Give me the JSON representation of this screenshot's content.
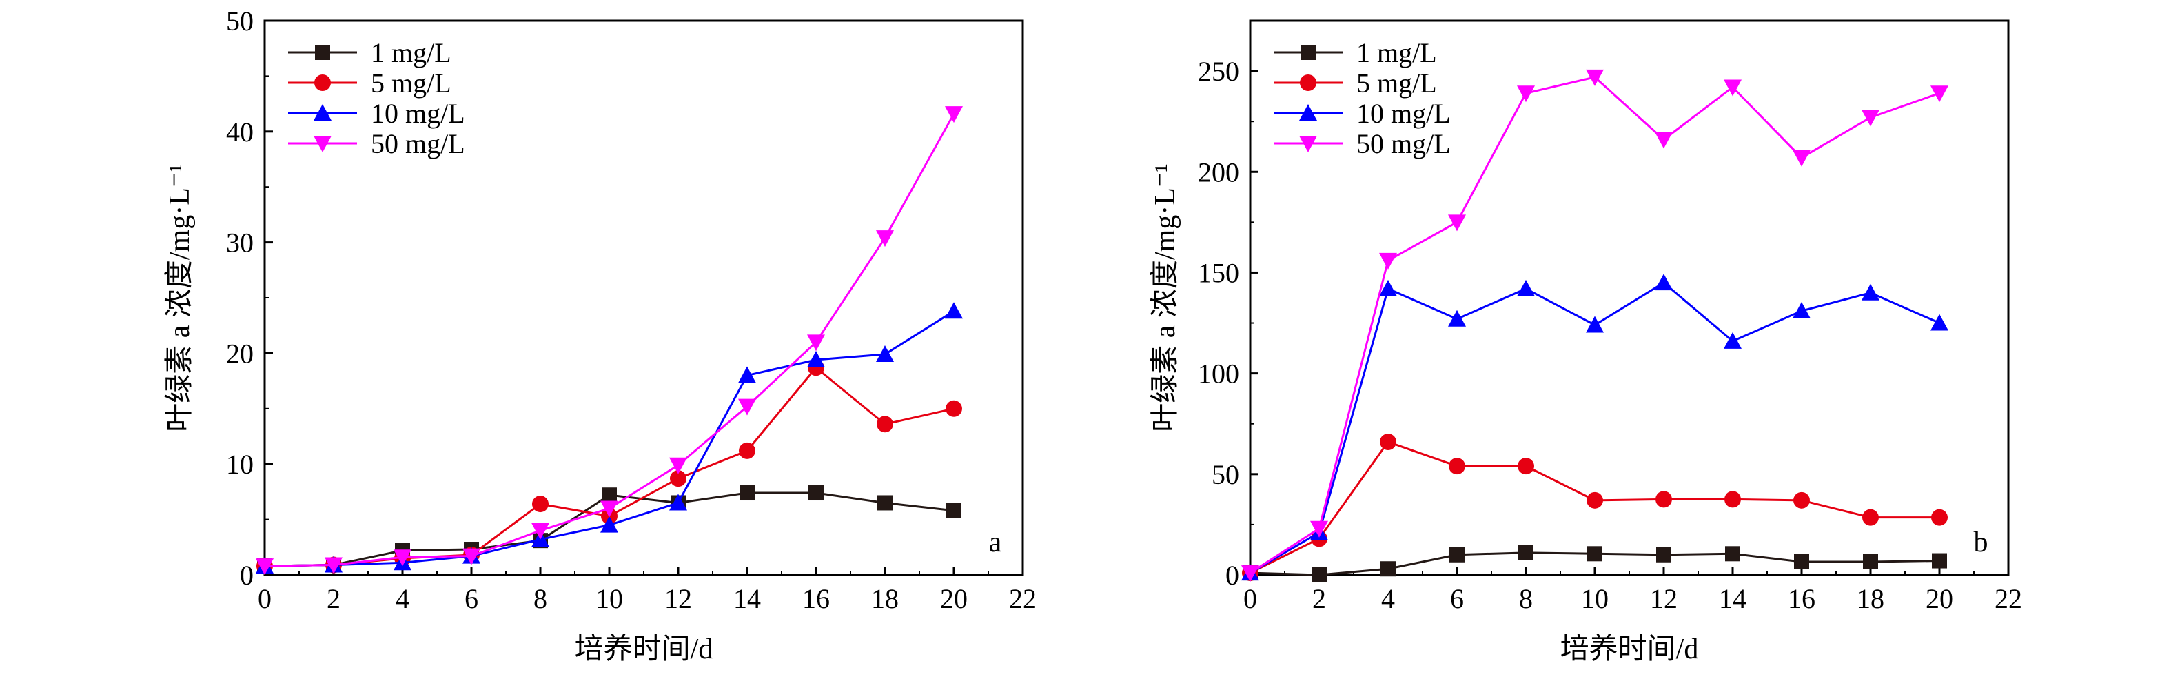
{
  "chart_data": [
    {
      "type": "line",
      "panel_label": "a",
      "xlabel": "培养时间/d",
      "ylabel": "叶绿素 a 浓度/mg·L⁻¹",
      "xlim": [
        0,
        22
      ],
      "ylim": [
        0,
        50
      ],
      "x_ticks": [
        "0",
        "2",
        "4",
        "6",
        "8",
        "10",
        "12",
        "14",
        "16",
        "18",
        "20",
        "22"
      ],
      "y_ticks": [
        "0",
        "10",
        "20",
        "30",
        "40",
        "50"
      ],
      "x": [
        0,
        2,
        4,
        6,
        8,
        10,
        12,
        14,
        16,
        18,
        20
      ],
      "grid": false,
      "legend_position": "top-left",
      "series": [
        {
          "name": "1 mg/L",
          "color": "#231815",
          "marker": "square",
          "values": [
            0.8,
            0.9,
            2.2,
            2.3,
            3.1,
            7.2,
            6.5,
            7.4,
            7.4,
            6.5,
            5.8
          ]
        },
        {
          "name": "5 mg/L",
          "color": "#e60012",
          "marker": "circle",
          "values": [
            0.8,
            0.9,
            1.5,
            1.8,
            6.4,
            5.3,
            8.7,
            11.2,
            18.7,
            13.6,
            15.0
          ]
        },
        {
          "name": "10 mg/L",
          "color": "#0000ff",
          "marker": "triangle-up",
          "values": [
            0.8,
            0.9,
            1.1,
            1.7,
            3.2,
            4.5,
            6.5,
            18.0,
            19.4,
            19.9,
            23.8
          ]
        },
        {
          "name": "50 mg/L",
          "color": "#ff00ff",
          "marker": "triangle-down",
          "values": [
            0.8,
            0.9,
            1.6,
            1.7,
            4.0,
            6.0,
            9.9,
            15.2,
            21.0,
            30.4,
            41.6
          ]
        }
      ]
    },
    {
      "type": "line",
      "panel_label": "b",
      "xlabel": "培养时间/d",
      "ylabel": "叶绿素 a 浓度/mg·L⁻¹",
      "xlim": [
        0,
        22
      ],
      "ylim": [
        0,
        275
      ],
      "x_ticks": [
        "0",
        "2",
        "4",
        "6",
        "8",
        "10",
        "12",
        "14",
        "16",
        "18",
        "20",
        "22"
      ],
      "y_ticks": [
        "0",
        "50",
        "100",
        "150",
        "200",
        "250"
      ],
      "x": [
        0,
        2,
        4,
        6,
        8,
        10,
        12,
        14,
        16,
        18,
        20
      ],
      "grid": false,
      "legend_position": "top-left",
      "series": [
        {
          "name": "1 mg/L",
          "color": "#231815",
          "marker": "square",
          "values": [
            1,
            0,
            3,
            10,
            11,
            10.5,
            10,
            10.5,
            6.5,
            6.5,
            7
          ]
        },
        {
          "name": "5 mg/L",
          "color": "#e60012",
          "marker": "circle",
          "values": [
            1,
            18,
            66,
            54,
            54,
            37,
            37.5,
            37.5,
            37,
            28.5,
            28.5
          ]
        },
        {
          "name": "10 mg/L",
          "color": "#0000ff",
          "marker": "triangle-up",
          "values": [
            1,
            21,
            142,
            127,
            142,
            124,
            145,
            116,
            131,
            140,
            125
          ]
        },
        {
          "name": "50 mg/L",
          "color": "#ff00ff",
          "marker": "triangle-down",
          "values": [
            1,
            23,
            156,
            175,
            239,
            247,
            216,
            242,
            207,
            227,
            239
          ]
        }
      ]
    }
  ]
}
